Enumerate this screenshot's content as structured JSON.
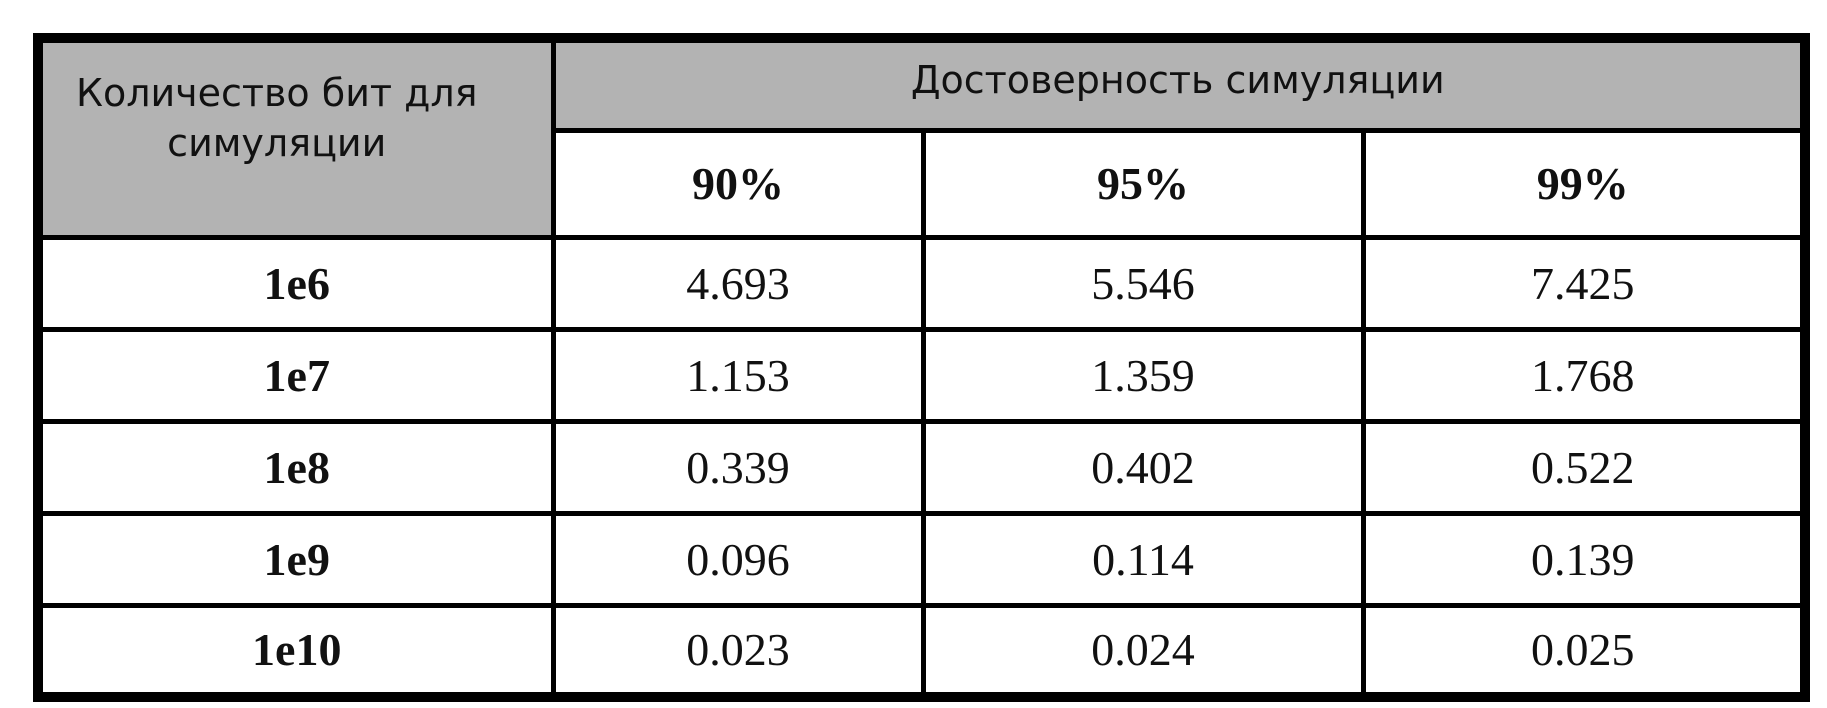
{
  "table": {
    "header": {
      "row_label": "Количество бит для симуляции",
      "group_label": "Достоверность симуляции",
      "columns": [
        "90%",
        "95%",
        "99%"
      ]
    },
    "rows": [
      [
        "1e6",
        "4.693",
        "5.546",
        "7.425"
      ],
      [
        "1e7",
        "1.153",
        "1.359",
        "1.768"
      ],
      [
        "1e8",
        "0.339",
        "0.402",
        "0.522"
      ],
      [
        "1e9",
        "0.096",
        "0.114",
        "0.139"
      ],
      [
        "1e10",
        "0.023",
        "0.024",
        "0.025"
      ]
    ]
  }
}
